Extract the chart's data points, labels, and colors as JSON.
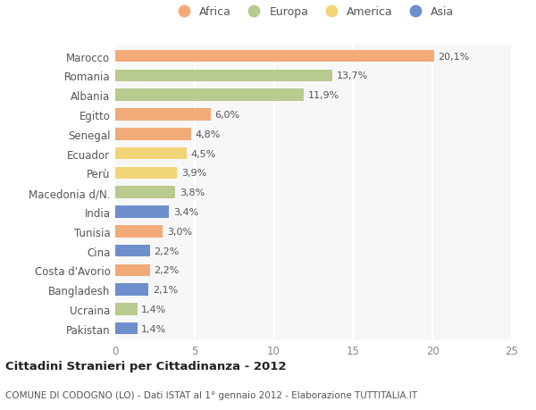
{
  "categories": [
    "Marocco",
    "Romania",
    "Albania",
    "Egitto",
    "Senegal",
    "Ecuador",
    "Perù",
    "Macedonia d/N.",
    "India",
    "Tunisia",
    "Cina",
    "Costa d'Avorio",
    "Bangladesh",
    "Ucraina",
    "Pakistan"
  ],
  "values": [
    20.1,
    13.7,
    11.9,
    6.0,
    4.8,
    4.5,
    3.9,
    3.8,
    3.4,
    3.0,
    2.2,
    2.2,
    2.1,
    1.4,
    1.4
  ],
  "labels": [
    "20,1%",
    "13,7%",
    "11,9%",
    "6,0%",
    "4,8%",
    "4,5%",
    "3,9%",
    "3,8%",
    "3,4%",
    "3,0%",
    "2,2%",
    "2,2%",
    "2,1%",
    "1,4%",
    "1,4%"
  ],
  "continents": [
    "Africa",
    "Europa",
    "Europa",
    "Africa",
    "Africa",
    "America",
    "America",
    "Europa",
    "Asia",
    "Africa",
    "Asia",
    "Africa",
    "Asia",
    "Europa",
    "Asia"
  ],
  "continent_colors": {
    "Africa": "#F2AB78",
    "Europa": "#B8CA8E",
    "America": "#F2D478",
    "Asia": "#6E8FCC"
  },
  "legend_order": [
    "Africa",
    "Europa",
    "America",
    "Asia"
  ],
  "background_color": "#FFFFFF",
  "plot_bg_color": "#F7F7F7",
  "title": "Cittadini Stranieri per Cittadinanza - 2012",
  "subtitle": "COMUNE DI CODOGNO (LO) - Dati ISTAT al 1° gennaio 2012 - Elaborazione TUTTITALIA.IT",
  "xlim": [
    0,
    25
  ],
  "xticks": [
    0,
    5,
    10,
    15,
    20,
    25
  ],
  "figsize": [
    6.0,
    4.6
  ],
  "dpi": 100
}
